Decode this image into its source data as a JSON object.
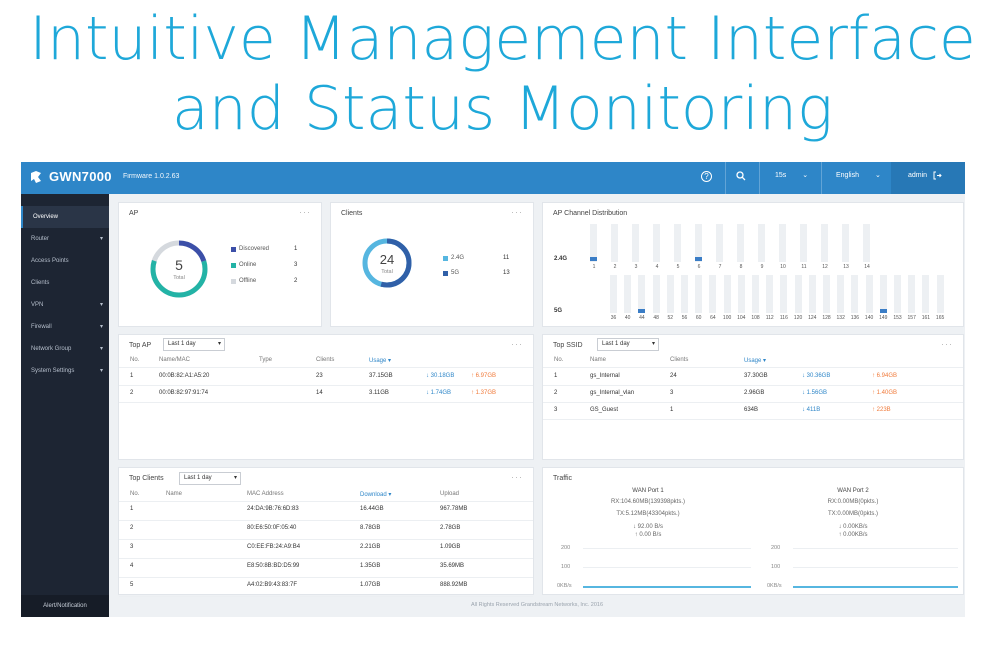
{
  "hero": {
    "line1": "Intuitive Management Interface",
    "line2": "and Status Monitoring"
  },
  "topbar": {
    "product": "GWN7000",
    "firmware": "Firmware 1.0.2.63",
    "refresh": "15s",
    "language": "English",
    "user": "admin"
  },
  "sidebar": {
    "items": [
      {
        "label": "Overview",
        "caret": false
      },
      {
        "label": "Router",
        "caret": true
      },
      {
        "label": "Access Points",
        "caret": false
      },
      {
        "label": "Clients",
        "caret": false
      },
      {
        "label": "VPN",
        "caret": true
      },
      {
        "label": "Firewall",
        "caret": true
      },
      {
        "label": "Network Group",
        "caret": true
      },
      {
        "label": "System Settings",
        "caret": true
      }
    ],
    "alert": "Alert/Notification"
  },
  "ap_card": {
    "title": "AP",
    "total": "5",
    "total_label": "Total",
    "legend": [
      {
        "label": "Discovered",
        "value": "1",
        "color": "#3c4fa8"
      },
      {
        "label": "Online",
        "value": "3",
        "color": "#23b3a6"
      },
      {
        "label": "Offline",
        "value": "2",
        "color": "#d5d9de"
      }
    ]
  },
  "clients_card": {
    "title": "Clients",
    "total": "24",
    "total_label": "Total",
    "legend": [
      {
        "label": "2.4G",
        "value": "11",
        "color": "#56b6e0"
      },
      {
        "label": "5G",
        "value": "13",
        "color": "#3060a8"
      }
    ]
  },
  "channel_card": {
    "title": "AP Channel Distribution",
    "band24": "2.4G",
    "band5": "5G",
    "ch24": [
      "1",
      "2",
      "3",
      "4",
      "5",
      "6",
      "7",
      "8",
      "9",
      "10",
      "11",
      "12",
      "13",
      "14"
    ],
    "ch24_active": [
      "1",
      "6"
    ],
    "ch5": [
      "36",
      "40",
      "44",
      "48",
      "52",
      "56",
      "60",
      "64",
      "100",
      "104",
      "108",
      "112",
      "116",
      "120",
      "124",
      "128",
      "132",
      "136",
      "140",
      "149",
      "153",
      "157",
      "161",
      "165"
    ],
    "ch5_active": [
      "44",
      "149"
    ]
  },
  "top_ap": {
    "title": "Top AP",
    "range": "Last 1 day",
    "headers": [
      "No.",
      "Name/MAC",
      "Type",
      "Clients",
      "Usage ▾"
    ],
    "rows": [
      {
        "no": "1",
        "name": "00:0B:82:A1:A5:20",
        "type": "",
        "clients": "23",
        "usage": "37.15GB",
        "down": "↓ 30.18GB",
        "up": "↑ 6.97GB"
      },
      {
        "no": "2",
        "name": "00:0B:82:97:91:74",
        "type": "",
        "clients": "14",
        "usage": "3.11GB",
        "down": "↓ 1.74GB",
        "up": "↑ 1.37GB"
      }
    ]
  },
  "top_ssid": {
    "title": "Top SSID",
    "range": "Last 1 day",
    "headers": [
      "No.",
      "Name",
      "Clients",
      "Usage ▾"
    ],
    "rows": [
      {
        "no": "1",
        "name": "gs_Internal",
        "clients": "24",
        "usage": "37.30GB",
        "down": "↓ 30.36GB",
        "up": "↑ 6.94GB"
      },
      {
        "no": "2",
        "name": "gs_Internal_vlan",
        "clients": "3",
        "usage": "2.96GB",
        "down": "↓ 1.56GB",
        "up": "↑ 1.40GB"
      },
      {
        "no": "3",
        "name": "GS_Guest",
        "clients": "1",
        "usage": "634B",
        "down": "↓ 411B",
        "up": "↑ 223B"
      }
    ]
  },
  "top_clients": {
    "title": "Top Clients",
    "range": "Last 1 day",
    "headers": [
      "No.",
      "Name",
      "MAC Address",
      "Download ▾",
      "Upload"
    ],
    "rows": [
      {
        "no": "1",
        "name": "",
        "mac": "24:DA:9B:76:6D:83",
        "download": "16.44GB",
        "upload": "967.78MB"
      },
      {
        "no": "2",
        "name": "",
        "mac": "80:E6:50:0F:05:40",
        "download": "8.78GB",
        "upload": "2.78GB"
      },
      {
        "no": "3",
        "name": "",
        "mac": "C0:EE:FB:24:A9:B4",
        "download": "2.21GB",
        "upload": "1.09GB"
      },
      {
        "no": "4",
        "name": "",
        "mac": "E8:50:8B:BD:D5:99",
        "download": "1.35GB",
        "upload": "35.69MB"
      },
      {
        "no": "5",
        "name": "",
        "mac": "A4:02:B9:43:83:7F",
        "download": "1.07GB",
        "upload": "888.92MB"
      }
    ]
  },
  "traffic": {
    "title": "Traffic",
    "wan1": {
      "name": "WAN Port 1",
      "rx": "RX:104.60MB(139398pkts.)",
      "tx": "TX:5.12MB(43304pkts.)",
      "down": "↓ 92.00 B/s",
      "up": "↑ 0.00 B/s"
    },
    "wan2": {
      "name": "WAN Port 2",
      "rx": "RX:0.00MB(0pkts.)",
      "tx": "TX:0.00MB(0pkts.)",
      "down": "↓ 0.00KB/s",
      "up": "↑ 0.00KB/s"
    },
    "ticks": [
      "200",
      "100",
      "0KB/s"
    ]
  },
  "footer": "All Rights Reserved Grandstream Networks, Inc. 2016",
  "colors": {
    "brand": "#2e86c8",
    "hero": "#1ea8d9",
    "sidebar": "#1d2533"
  },
  "icons": {
    "logo": "grandstream-logo-icon",
    "help": "help-icon",
    "search": "search-icon",
    "logout": "logout-icon"
  }
}
